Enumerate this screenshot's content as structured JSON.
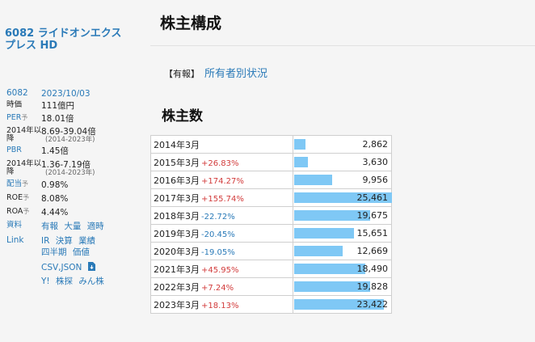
{
  "company_name": "6082 ライドオンエクスプレス HD",
  "sidebar": {
    "code": "6082",
    "date": "2023/10/03",
    "jika_label": "時価",
    "jika_value": "111億円",
    "per_label": "PER",
    "per_mark": "予",
    "per_value": "18.01倍",
    "per_range_label": "2014年以降",
    "per_range": "8.69-39.04倍",
    "per_range_sub": "(2014-2023年)",
    "pbr_label": "PBR",
    "pbr_value": "1.45倍",
    "pbr_range_label": "2014年以降",
    "pbr_range": "1.36-7.19倍",
    "pbr_range_sub": "(2014-2023年)",
    "div_label": "配当",
    "div_mark": "予",
    "div_value": "0.98%",
    "roe_label": "ROE",
    "roe_mark": "予",
    "roe_value": "8.08%",
    "roa_label": "ROA",
    "roa_mark": "予",
    "roa_value": "4.44%",
    "docs_label": "資料",
    "docs_links": [
      "有報",
      "大量",
      "適時"
    ],
    "link_label": "Link",
    "links_row1": [
      "IR",
      "決算",
      "業績"
    ],
    "links_row2": [
      "四半期",
      "価値"
    ],
    "links_row3": [
      "CSV,JSON"
    ],
    "links_row4": [
      "Y!",
      "株探",
      "みん株"
    ]
  },
  "main": {
    "title": "株主構成",
    "yuho_tag": "【有報】",
    "yuho_link": "所有者別状況",
    "section_title": "株主数"
  },
  "colors": {
    "bar": "#7fc8f5",
    "positive": "#d23b3b",
    "negative": "#2a7ab8",
    "link": "#2a7ab8"
  },
  "chart_data": {
    "type": "bar",
    "title": "株主数",
    "categories": [
      "2014年3月",
      "2015年3月",
      "2016年3月",
      "2017年3月",
      "2018年3月",
      "2019年3月",
      "2020年3月",
      "2021年3月",
      "2022年3月",
      "2023年3月"
    ],
    "values": [
      2862,
      3630,
      9956,
      25461,
      19675,
      15651,
      12669,
      18490,
      19828,
      23422
    ],
    "value_labels": [
      "2,862",
      "3,630",
      "9,956",
      "25,461",
      "19,675",
      "15,651",
      "12,669",
      "18,490",
      "19,828",
      "23,422"
    ],
    "changes": [
      "",
      "+26.83%",
      "+174.27%",
      "+155.74%",
      "-22.72%",
      "-20.45%",
      "-19.05%",
      "+45.95%",
      "+7.24%",
      "+18.13%"
    ],
    "max": 25461
  }
}
